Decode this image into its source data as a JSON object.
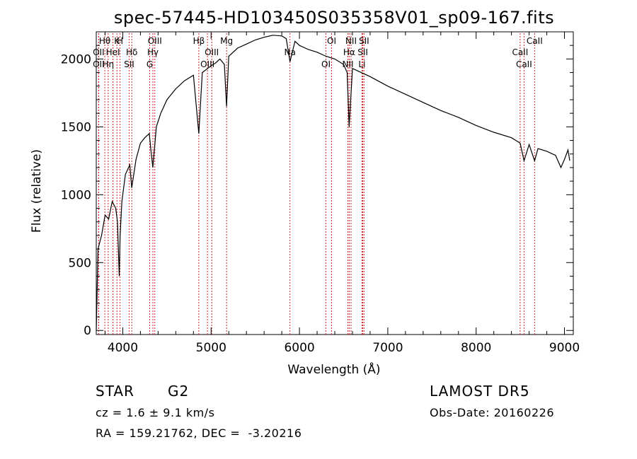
{
  "chart_data": {
    "type": "line",
    "title": "spec-57445-HD103450S035358V01_sp09-167.fits",
    "xlabel": "Wavelength (Å)",
    "ylabel": "Flux (relative)",
    "xlim": [
      3700,
      9100
    ],
    "ylim": [
      -30,
      2200
    ],
    "x_ticks": [
      4000,
      5000,
      6000,
      7000,
      8000,
      9000
    ],
    "y_ticks": [
      0,
      500,
      1000,
      1500,
      2000
    ],
    "grid": false,
    "series": [
      {
        "x": [
          3700,
          3720,
          3760,
          3800,
          3840,
          3880,
          3920,
          3940,
          3960,
          3970,
          3990,
          4030,
          4080,
          4101,
          4150,
          4200,
          4250,
          4300,
          4320,
          4340,
          4380,
          4430,
          4500,
          4600,
          4700,
          4800,
          4861,
          4900,
          4960,
          5000,
          5050,
          5100,
          5150,
          5175,
          5200,
          5300,
          5400,
          5500,
          5600,
          5700,
          5800,
          5850,
          5893,
          5950,
          6000,
          6100,
          6200,
          6300,
          6400,
          6500,
          6540,
          6563,
          6600,
          6700,
          6800,
          7000,
          7200,
          7400,
          7600,
          7800,
          8000,
          8200,
          8400,
          8498,
          8542,
          8600,
          8662,
          8700,
          8800,
          8900,
          8960,
          9000,
          9040,
          9060
        ],
        "y": [
          0,
          600,
          700,
          850,
          820,
          950,
          900,
          800,
          400,
          700,
          950,
          1150,
          1220,
          1050,
          1260,
          1380,
          1420,
          1450,
          1320,
          1200,
          1500,
          1600,
          1700,
          1780,
          1840,
          1880,
          1450,
          1900,
          1930,
          1950,
          1970,
          2000,
          1960,
          1650,
          2020,
          2080,
          2110,
          2140,
          2160,
          2175,
          2170,
          2150,
          1980,
          2130,
          2100,
          2070,
          2050,
          2020,
          2000,
          1960,
          1900,
          1500,
          1930,
          1900,
          1870,
          1800,
          1740,
          1680,
          1620,
          1570,
          1510,
          1460,
          1420,
          1380,
          1250,
          1370,
          1250,
          1340,
          1320,
          1290,
          1200,
          1260,
          1330,
          1250
        ]
      }
    ],
    "lines": [
      {
        "name": "Hθ",
        "x": 3797
      },
      {
        "name": "OII",
        "x": 3727
      },
      {
        "name": "OII",
        "x": 3727
      },
      {
        "name": "K",
        "x": 3934
      },
      {
        "name": "HeI",
        "x": 3889
      },
      {
        "name": "Hη",
        "x": 3835
      },
      {
        "name": "H",
        "x": 3969
      },
      {
        "name": "Hδ",
        "x": 4102
      },
      {
        "name": "SII",
        "x": 4072
      },
      {
        "name": "OIII",
        "x": 4363
      },
      {
        "name": "Hγ",
        "x": 4341
      },
      {
        "name": "G",
        "x": 4305
      },
      {
        "name": "Hβ",
        "x": 4861
      },
      {
        "name": "OIII",
        "x": 5007
      },
      {
        "name": "OIII",
        "x": 4959
      },
      {
        "name": "Mg",
        "x": 5175
      },
      {
        "name": "Na",
        "x": 5893
      },
      {
        "name": "OI",
        "x": 6300
      },
      {
        "name": "OI",
        "x": 6364
      },
      {
        "name": "Hα",
        "x": 6563
      },
      {
        "name": "NII",
        "x": 6548
      },
      {
        "name": "NII",
        "x": 6584
      },
      {
        "name": "SII",
        "x": 6717
      },
      {
        "name": "Li",
        "x": 6708
      },
      {
        "name": "SII",
        "x": 6731
      },
      {
        "name": "CaII",
        "x": 8498
      },
      {
        "name": "CaII",
        "x": 8542
      },
      {
        "name": "CaII",
        "x": 8662
      }
    ]
  },
  "info": {
    "class": "STAR",
    "subclass": "G2",
    "survey": "LAMOST DR5",
    "cz": "cz = 1.6 ± 9.1 km/s",
    "obs_date": "Obs-Date: 20160226",
    "coords": "RA = 159.21762, DEC =  -3.20216"
  }
}
